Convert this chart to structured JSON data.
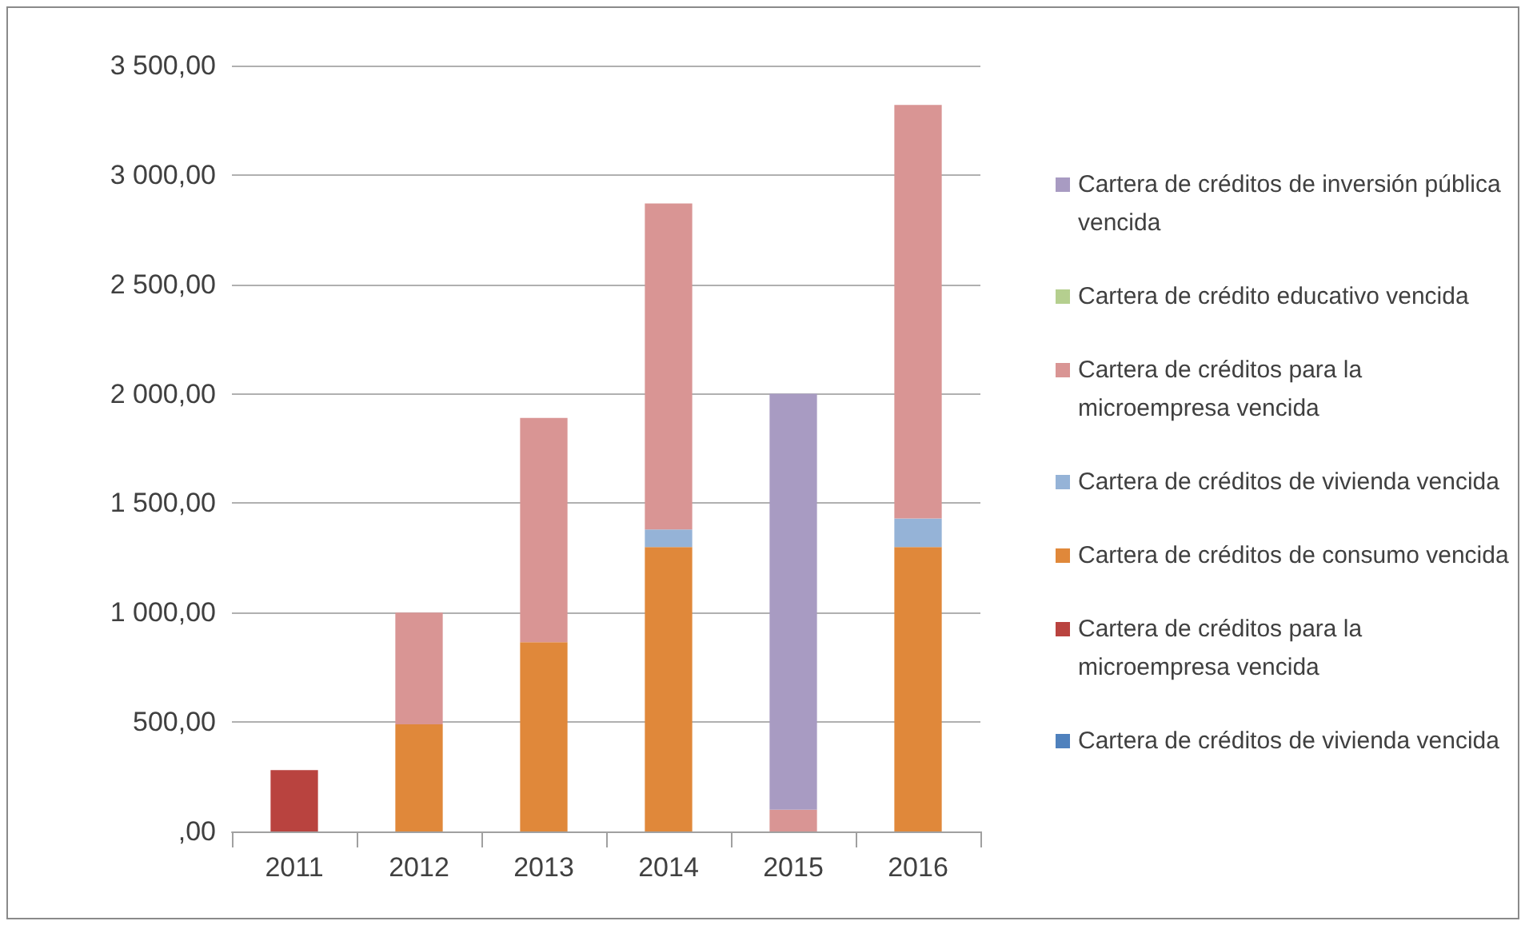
{
  "chart_data": {
    "type": "bar",
    "stacked": true,
    "categories": [
      "2011",
      "2012",
      "2013",
      "2014",
      "2015",
      "2016"
    ],
    "series": [
      {
        "name": "Cartera de créditos de vivienda vencida",
        "color": "#4f81bd",
        "values": [
          0,
          0,
          0,
          0,
          0,
          0
        ]
      },
      {
        "name": "Cartera de créditos para la microempresa vencida",
        "color": "#b9433f",
        "values": [
          280,
          0,
          0,
          0,
          0,
          0
        ]
      },
      {
        "name": "Cartera de créditos de consumo vencida",
        "color": "#e0883a",
        "values": [
          0,
          490,
          865,
          1300,
          0,
          1300
        ]
      },
      {
        "name": "Cartera de créditos de vivienda vencida",
        "color": "#95b3d7",
        "values": [
          0,
          0,
          0,
          80,
          0,
          130
        ]
      },
      {
        "name": "Cartera de créditos para la microempresa vencida",
        "color": "#d99594",
        "values": [
          0,
          510,
          1025,
          1490,
          100,
          1890
        ]
      },
      {
        "name": "Cartera de crédito educativo vencida",
        "color": "#b5cf8f",
        "values": [
          0,
          0,
          0,
          0,
          0,
          0
        ]
      },
      {
        "name": "Cartera de créditos de inversión pública vencida",
        "color": "#a89bc2",
        "values": [
          0,
          0,
          0,
          0,
          1900,
          0
        ]
      }
    ],
    "ylim": [
      0,
      3500
    ],
    "yticks": [
      {
        "value": 0,
        "label": ",00"
      },
      {
        "value": 500,
        "label": "500,00"
      },
      {
        "value": 1000,
        "label": "1 000,00"
      },
      {
        "value": 1500,
        "label": "1 500,00"
      },
      {
        "value": 2000,
        "label": "2 000,00"
      },
      {
        "value": 2500,
        "label": "2 500,00"
      },
      {
        "value": 3000,
        "label": "3 000,00"
      },
      {
        "value": 3500,
        "label": "3 500,00"
      }
    ],
    "grid": "y",
    "legend": "right"
  }
}
